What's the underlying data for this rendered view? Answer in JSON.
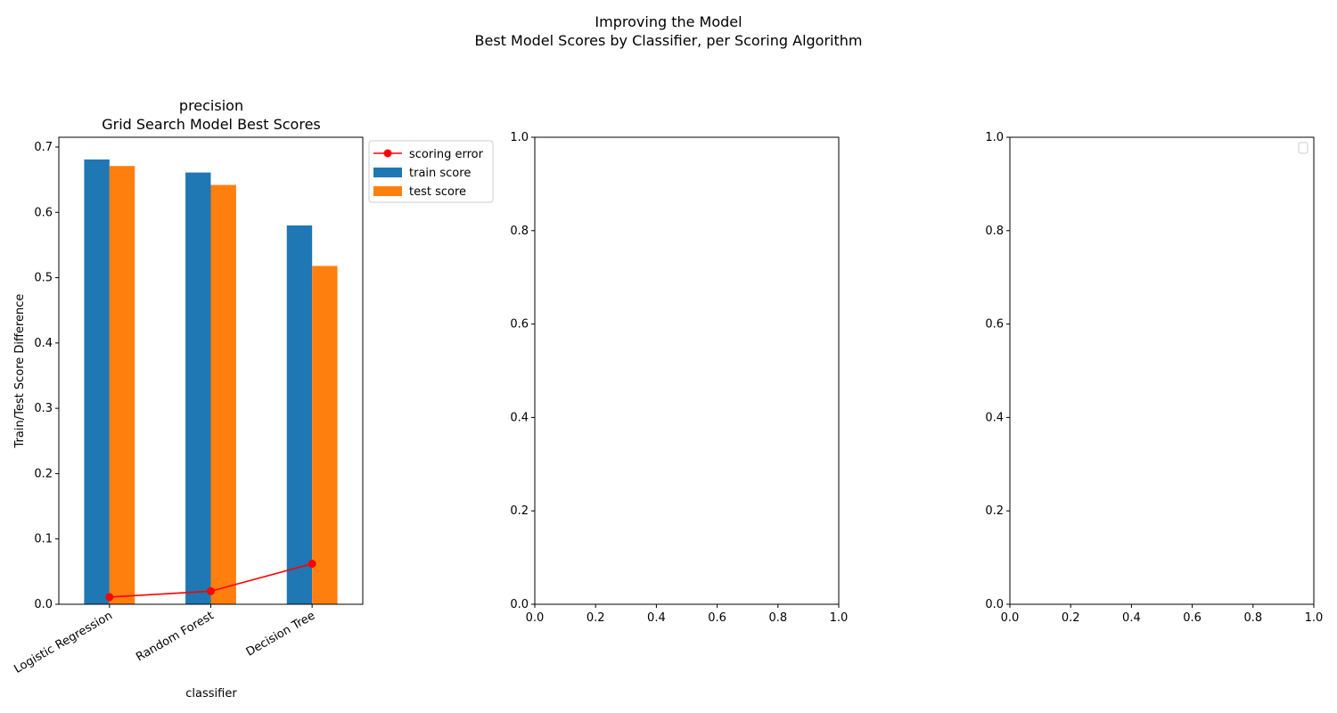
{
  "figure": {
    "title_line1": "Improving the Model",
    "title_line2": "Best Model Scores by Classifier, per Scoring Algorithm"
  },
  "chart_data": [
    {
      "type": "bar",
      "title_line1": "precision",
      "title_line2": "Grid Search Model Best Scores",
      "xlabel": "classifier",
      "ylabel": "Train/Test Score Difference",
      "ylim": [
        0,
        0.715
      ],
      "yticks": [
        0.0,
        0.1,
        0.2,
        0.3,
        0.4,
        0.5,
        0.6,
        0.7
      ],
      "ytick_labels": [
        "0.0",
        "0.1",
        "0.2",
        "0.3",
        "0.4",
        "0.5",
        "0.6",
        "0.7"
      ],
      "categories": [
        "Logistic Regression",
        "Random Forest",
        "Decision Tree"
      ],
      "series": [
        {
          "name": "train score",
          "kind": "bar",
          "color": "#1f77b4",
          "values": [
            0.681,
            0.661,
            0.58
          ]
        },
        {
          "name": "test score",
          "kind": "bar",
          "color": "#ff7f0e",
          "values": [
            0.671,
            0.642,
            0.518
          ]
        },
        {
          "name": "scoring error",
          "kind": "line",
          "color": "#ff0000",
          "values": [
            0.011,
            0.02,
            0.062
          ]
        }
      ],
      "legend_order": [
        "scoring error",
        "train score",
        "test score"
      ],
      "legend_placement": "outside-upper-right"
    },
    {
      "type": "line",
      "xlim": [
        0,
        1
      ],
      "ylim": [
        0,
        1
      ],
      "xtick_labels": [
        "0.0",
        "0.2",
        "0.4",
        "0.6",
        "0.8",
        "1.0"
      ],
      "ytick_labels": [
        "0.0",
        "0.2",
        "0.4",
        "0.6",
        "0.8",
        "1.0"
      ],
      "series": []
    },
    {
      "type": "line",
      "xlim": [
        0,
        1
      ],
      "ylim": [
        0,
        1
      ],
      "xtick_labels": [
        "0.0",
        "0.2",
        "0.4",
        "0.6",
        "0.8",
        "1.0"
      ],
      "ytick_labels": [
        "0.0",
        "0.2",
        "0.4",
        "0.6",
        "0.8",
        "1.0"
      ],
      "series": [],
      "legend_placement": "upper-right"
    }
  ]
}
